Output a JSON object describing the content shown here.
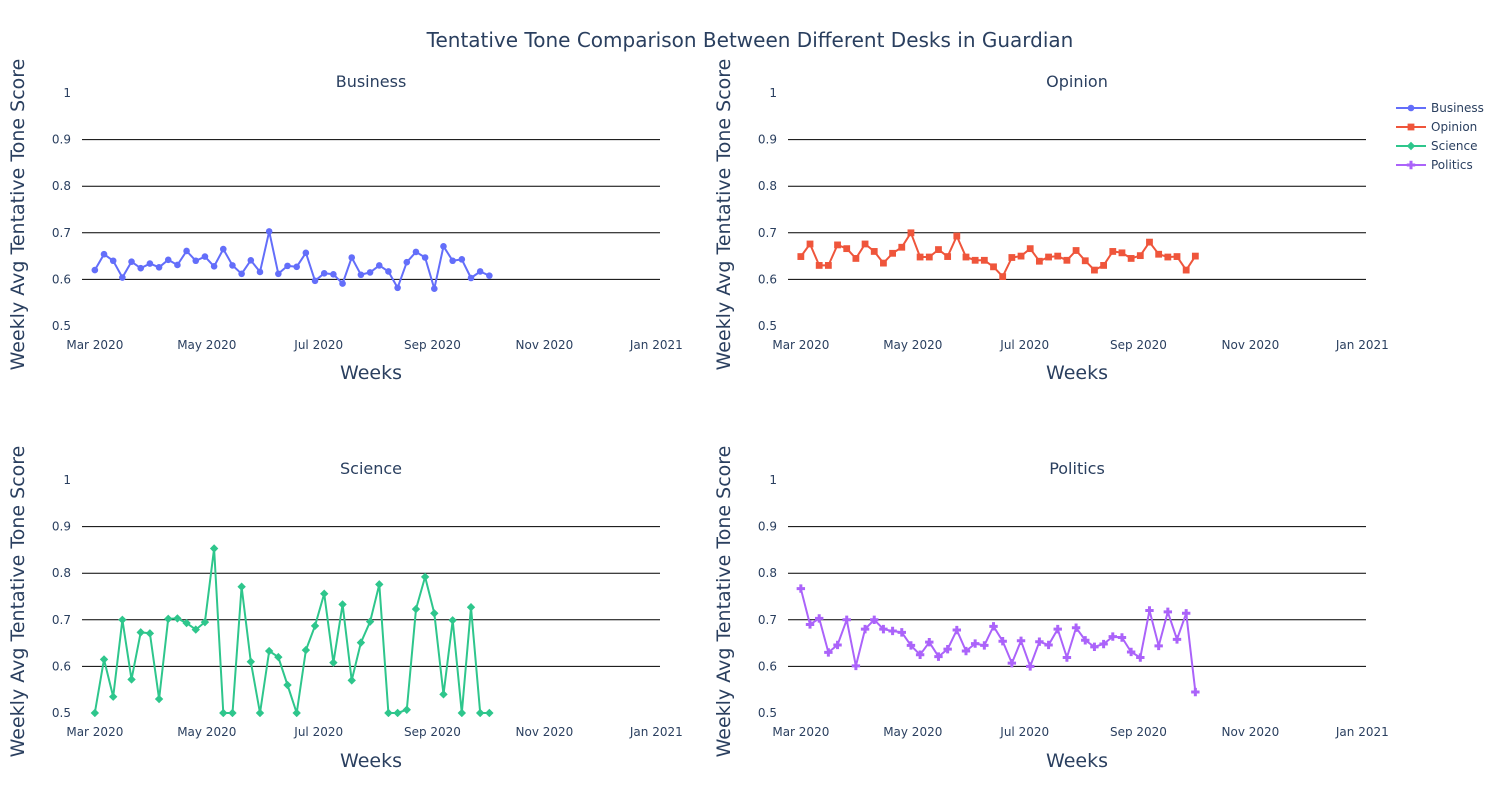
{
  "title": "Tentative Tone Comparison Between Different Desks in Guardian",
  "chart_data": {
    "type": "line",
    "x_axis": {
      "label": "Weeks",
      "range": [
        "2020-02-23",
        "2021-01-03"
      ],
      "tick_values": [
        "2020-03-01",
        "2020-05-01",
        "2020-07-01",
        "2020-09-01",
        "2020-11-01",
        "2021-01-01"
      ],
      "tick_labels": [
        "Mar 2020",
        "May 2020",
        "Jul 2020",
        "Sep 2020",
        "Nov 2020",
        "Jan 2021"
      ]
    },
    "y_axis": {
      "label": "Weekly Avg Tentative Tone Score",
      "range": [
        0.5,
        1.0
      ],
      "tick_values": [
        0.5,
        0.6,
        0.7,
        0.8,
        0.9,
        1.0
      ],
      "tick_labels": [
        "0.5",
        "0.6",
        "0.7",
        "0.8",
        "0.9",
        "1"
      ]
    },
    "grid": true,
    "legend_position": "top-right",
    "x_start": "2020-03-01",
    "x_step_days": 5,
    "series": [
      {
        "name": "Business",
        "color": "#636efa",
        "marker": "circle",
        "values": [
          0.62,
          0.654,
          0.64,
          0.604,
          0.638,
          0.624,
          0.634,
          0.626,
          0.642,
          0.631,
          0.661,
          0.64,
          0.649,
          0.628,
          0.665,
          0.63,
          0.612,
          0.641,
          0.616,
          0.703,
          0.612,
          0.629,
          0.627,
          0.657,
          0.597,
          0.613,
          0.611,
          0.591,
          0.647,
          0.61,
          0.615,
          0.63,
          0.617,
          0.582,
          0.637,
          0.659,
          0.647,
          0.58,
          0.671,
          0.64,
          0.643,
          0.603,
          0.617,
          0.608
        ]
      },
      {
        "name": "Opinion",
        "color": "#ef553b",
        "marker": "square",
        "values": [
          0.649,
          0.676,
          0.63,
          0.63,
          0.674,
          0.666,
          0.645,
          0.676,
          0.66,
          0.635,
          0.656,
          0.669,
          0.7,
          0.648,
          0.648,
          0.664,
          0.649,
          0.693,
          0.648,
          0.641,
          0.641,
          0.627,
          0.606,
          0.647,
          0.65,
          0.666,
          0.639,
          0.648,
          0.65,
          0.641,
          0.662,
          0.64,
          0.62,
          0.63,
          0.66,
          0.657,
          0.645,
          0.651,
          0.68,
          0.654,
          0.648,
          0.649,
          0.62,
          0.65
        ]
      },
      {
        "name": "Science",
        "color": "#2ec68c",
        "marker": "diamond",
        "values": [
          0.5,
          0.615,
          0.535,
          0.7,
          0.572,
          0.673,
          0.671,
          0.53,
          0.702,
          0.703,
          0.693,
          0.679,
          0.695,
          0.853,
          0.5,
          0.5,
          0.771,
          0.61,
          0.5,
          0.633,
          0.62,
          0.56,
          0.5,
          0.635,
          0.687,
          0.756,
          0.608,
          0.733,
          0.57,
          0.651,
          0.696,
          0.776,
          0.5,
          0.5,
          0.507,
          0.723,
          0.792,
          0.714,
          0.54,
          0.699,
          0.5,
          0.727,
          0.5,
          0.5
        ]
      },
      {
        "name": "Politics",
        "color": "#ab63fa",
        "marker": "cross",
        "values": [
          0.767,
          0.69,
          0.703,
          0.63,
          0.646,
          0.7,
          0.601,
          0.68,
          0.7,
          0.68,
          0.676,
          0.673,
          0.645,
          0.625,
          0.652,
          0.621,
          0.637,
          0.678,
          0.633,
          0.649,
          0.645,
          0.686,
          0.654,
          0.607,
          0.655,
          0.6,
          0.653,
          0.646,
          0.68,
          0.619,
          0.683,
          0.656,
          0.642,
          0.648,
          0.664,
          0.662,
          0.631,
          0.619,
          0.72,
          0.644,
          0.717,
          0.658,
          0.714,
          0.545
        ]
      }
    ]
  }
}
